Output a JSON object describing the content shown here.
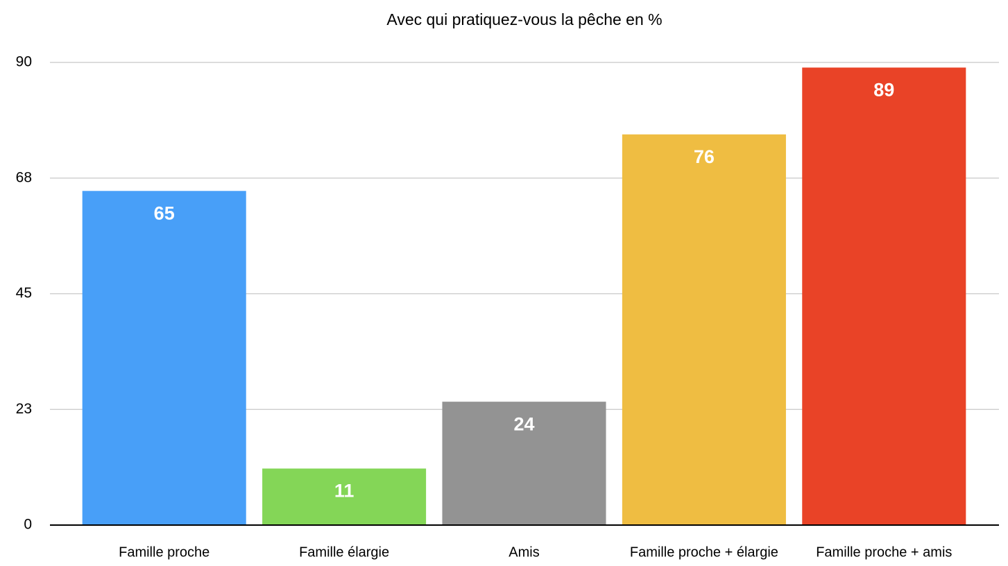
{
  "chart_data": {
    "type": "bar",
    "title": "Avec qui  pratiquez-vous la pêche en %",
    "categories": [
      "Famille proche",
      "Famille élargie",
      "Amis",
      "Famille proche + élargie",
      "Famille proche + amis"
    ],
    "values": [
      65,
      11,
      24,
      76,
      89
    ],
    "colors": [
      "#489ff8",
      "#84d657",
      "#939393",
      "#efbd42",
      "#e94327"
    ],
    "ylim": [
      0,
      90
    ],
    "yticks": [
      0,
      {
        "value": 22.5,
        "label": "23"
      },
      45,
      {
        "value": 67.5,
        "label": "68"
      },
      90
    ],
    "grid": true
  }
}
